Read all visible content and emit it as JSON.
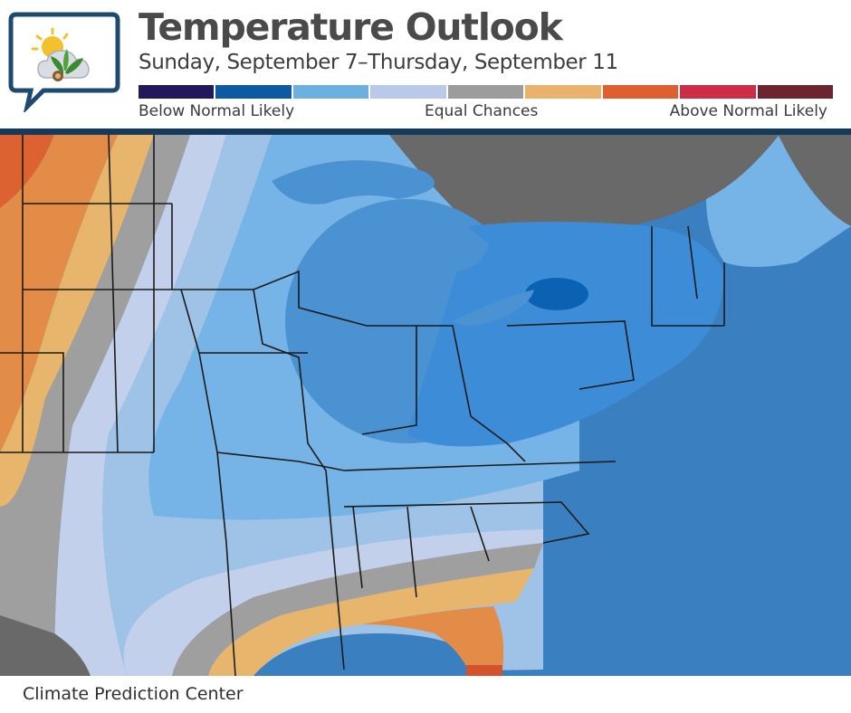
{
  "header": {
    "title": "Temperature Outlook",
    "subtitle": "Sunday, September 7–Thursday, September 11"
  },
  "legend": {
    "label_below": "Below Normal Likely",
    "label_equal": "Equal Chances",
    "label_above": "Above Normal Likely",
    "swatches": [
      {
        "category": "below-5",
        "color": "#22195a"
      },
      {
        "category": "below-4",
        "color": "#0e5aa0"
      },
      {
        "category": "below-3",
        "color": "#6cb0e0"
      },
      {
        "category": "below-2",
        "color": "#b9c9ea"
      },
      {
        "category": "equal-chances",
        "color": "#9c9c9c"
      },
      {
        "category": "above-2",
        "color": "#e9b36d"
      },
      {
        "category": "above-3",
        "color": "#de6030"
      },
      {
        "category": "above-4",
        "color": "#cc2d47"
      },
      {
        "category": "above-5",
        "color": "#6c2530"
      }
    ]
  },
  "map": {
    "colors": {
      "ocean": "#3a7fbf",
      "land_outside": "#696969",
      "below_light": "#c3d0ec",
      "below_mid": "#9ec3e7",
      "below_blue": "#76b3e6",
      "below_strong": "#4a92d2",
      "below_deep": "#3d8cd8",
      "below_deepest": "#0b62b3",
      "equal": "#9f9f9f",
      "above_light": "#e7b56b",
      "above_mid": "#e38c48",
      "above_strong": "#dc6232",
      "above_deep": "#d5532c",
      "border": "#1b1b1b"
    }
  },
  "footer": {
    "source": "Climate Prediction Center"
  }
}
